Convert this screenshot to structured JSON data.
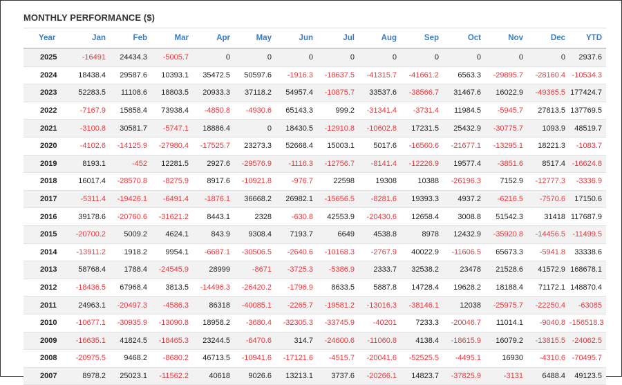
{
  "panel": {
    "title": "MONTHLY PERFORMANCE ($)"
  },
  "columns": [
    "Year",
    "Jan",
    "Feb",
    "Mar",
    "Apr",
    "May",
    "Jun",
    "Jul",
    "Aug",
    "Sep",
    "Oct",
    "Nov",
    "Dec",
    "YTD"
  ],
  "colors": {
    "header": "#3a7cbf",
    "negative": "#e8383d",
    "text": "#222222",
    "stripe": "#f2f2f2"
  },
  "rows": [
    [
      "2025",
      "-16491",
      "24434.3",
      "-5005.7",
      "0",
      "0",
      "0",
      "0",
      "0",
      "0",
      "0",
      "0",
      "0",
      "2937.6"
    ],
    [
      "2024",
      "18438.4",
      "29587.6",
      "10393.1",
      "35472.5",
      "50597.6",
      "-1916.3",
      "-18637.5",
      "-41315.7",
      "-41661.2",
      "6563.3",
      "-29895.7",
      "-28160.4",
      "-10534.3"
    ],
    [
      "2023",
      "52283.5",
      "11108.6",
      "18803.5",
      "20933.3",
      "37118.2",
      "54957.4",
      "-10875.7",
      "33537.6",
      "-38566.7",
      "31467.6",
      "16022.9",
      "-49365.5",
      "177424.7"
    ],
    [
      "2022",
      "-7167.9",
      "15858.4",
      "73938.4",
      "-4850.8",
      "-4930.6",
      "65143.3",
      "999.2",
      "-31341.4",
      "-3731.4",
      "11984.5",
      "-5945.7",
      "27813.5",
      "137769.5"
    ],
    [
      "2021",
      "-3100.8",
      "30581.7",
      "-5747.1",
      "18886.4",
      "0",
      "18430.5",
      "-12910.8",
      "-10602.8",
      "17231.5",
      "25432.9",
      "-30775.7",
      "1093.9",
      "48519.7"
    ],
    [
      "2020",
      "-4102.6",
      "-14125.9",
      "-27980.4",
      "-17525.7",
      "23273.3",
      "52668.4",
      "15003.1",
      "5017.6",
      "-16560.6",
      "-21677.1",
      "-13295.1",
      "18221.3",
      "-1083.7"
    ],
    [
      "2019",
      "8193.1",
      "-452",
      "12281.5",
      "2927.6",
      "-29576.9",
      "-1116.3",
      "-12756.7",
      "-8141.4",
      "-12226.9",
      "19577.4",
      "-3851.6",
      "8517.4",
      "-16624.8"
    ],
    [
      "2018",
      "16017.4",
      "-28570.8",
      "-8275.9",
      "8917.6",
      "-10921.8",
      "-976.7",
      "22598",
      "19308",
      "10388",
      "-26196.3",
      "7152.9",
      "-12777.3",
      "-3336.9"
    ],
    [
      "2017",
      "-5311.4",
      "-19426.1",
      "-6491.4",
      "-1876.1",
      "36668.2",
      "26982.1",
      "-15656.5",
      "-8281.6",
      "19393.3",
      "4937.2",
      "-6216.5",
      "-7570.6",
      "17150.6"
    ],
    [
      "2016",
      "39178.6",
      "-20760.6",
      "-31621.2",
      "8443.1",
      "2328",
      "-630.8",
      "42553.9",
      "-20430.6",
      "12658.4",
      "3008.8",
      "51542.3",
      "31418",
      "117687.9"
    ],
    [
      "2015",
      "-20700.2",
      "5009.2",
      "4624.1",
      "843.9",
      "9308.4",
      "7193.7",
      "6649",
      "4538.8",
      "8978",
      "12432.9",
      "-35920.8",
      "-14456.5",
      "-11499.5"
    ],
    [
      "2014",
      "-13911.2",
      "1918.2",
      "9954.1",
      "-6687.1",
      "-30506.5",
      "-2640.6",
      "-10168.3",
      "-2767.9",
      "40022.9",
      "-11606.5",
      "65673.3",
      "-5941.8",
      "33338.6"
    ],
    [
      "2013",
      "58768.4",
      "1788.4",
      "-24545.9",
      "28999",
      "-8671",
      "-3725.3",
      "-5386.9",
      "2333.7",
      "32538.2",
      "23478",
      "21528.6",
      "41572.9",
      "168678.1"
    ],
    [
      "2012",
      "-18436.5",
      "67968.4",
      "3813.5",
      "-14496.3",
      "-26420.2",
      "-1796.9",
      "8633.5",
      "5887.8",
      "14728.4",
      "19628.2",
      "18188.4",
      "71172.1",
      "148870.4"
    ],
    [
      "2011",
      "24963.1",
      "-20497.3",
      "-4586.3",
      "86318",
      "-40085.1",
      "-2265.7",
      "-19581.2",
      "-13016.3",
      "-38146.1",
      "12038",
      "-25975.7",
      "-22250.4",
      "-63085"
    ],
    [
      "2010",
      "-10677.1",
      "-30935.9",
      "-13090.8",
      "18958.2",
      "-3680.4",
      "-32305.3",
      "-33745.9",
      "-40201",
      "7233.3",
      "-20046.7",
      "11014.1",
      "-9040.8",
      "-156518.3"
    ],
    [
      "2009",
      "-16635.1",
      "41824.5",
      "-18465.3",
      "23244.5",
      "-6470.6",
      "314.7",
      "-24600.6",
      "-11060.8",
      "4138.4",
      "-18615.9",
      "16079.2",
      "-13815.5",
      "-24062.5"
    ],
    [
      "2008",
      "-20975.5",
      "9468.2",
      "-8680.2",
      "46713.5",
      "-10941.6",
      "-17121.6",
      "-4515.7",
      "-20041.6",
      "-52525.5",
      "-4495.1",
      "16930",
      "-4310.6",
      "-70495.7"
    ],
    [
      "2007",
      "8978.2",
      "25023.1",
      "-11562.2",
      "40618",
      "9026.6",
      "13213.1",
      "3737.6",
      "-20266.1",
      "14823.7",
      "-37825.9",
      "-3131",
      "6488.4",
      "49123.5"
    ]
  ]
}
